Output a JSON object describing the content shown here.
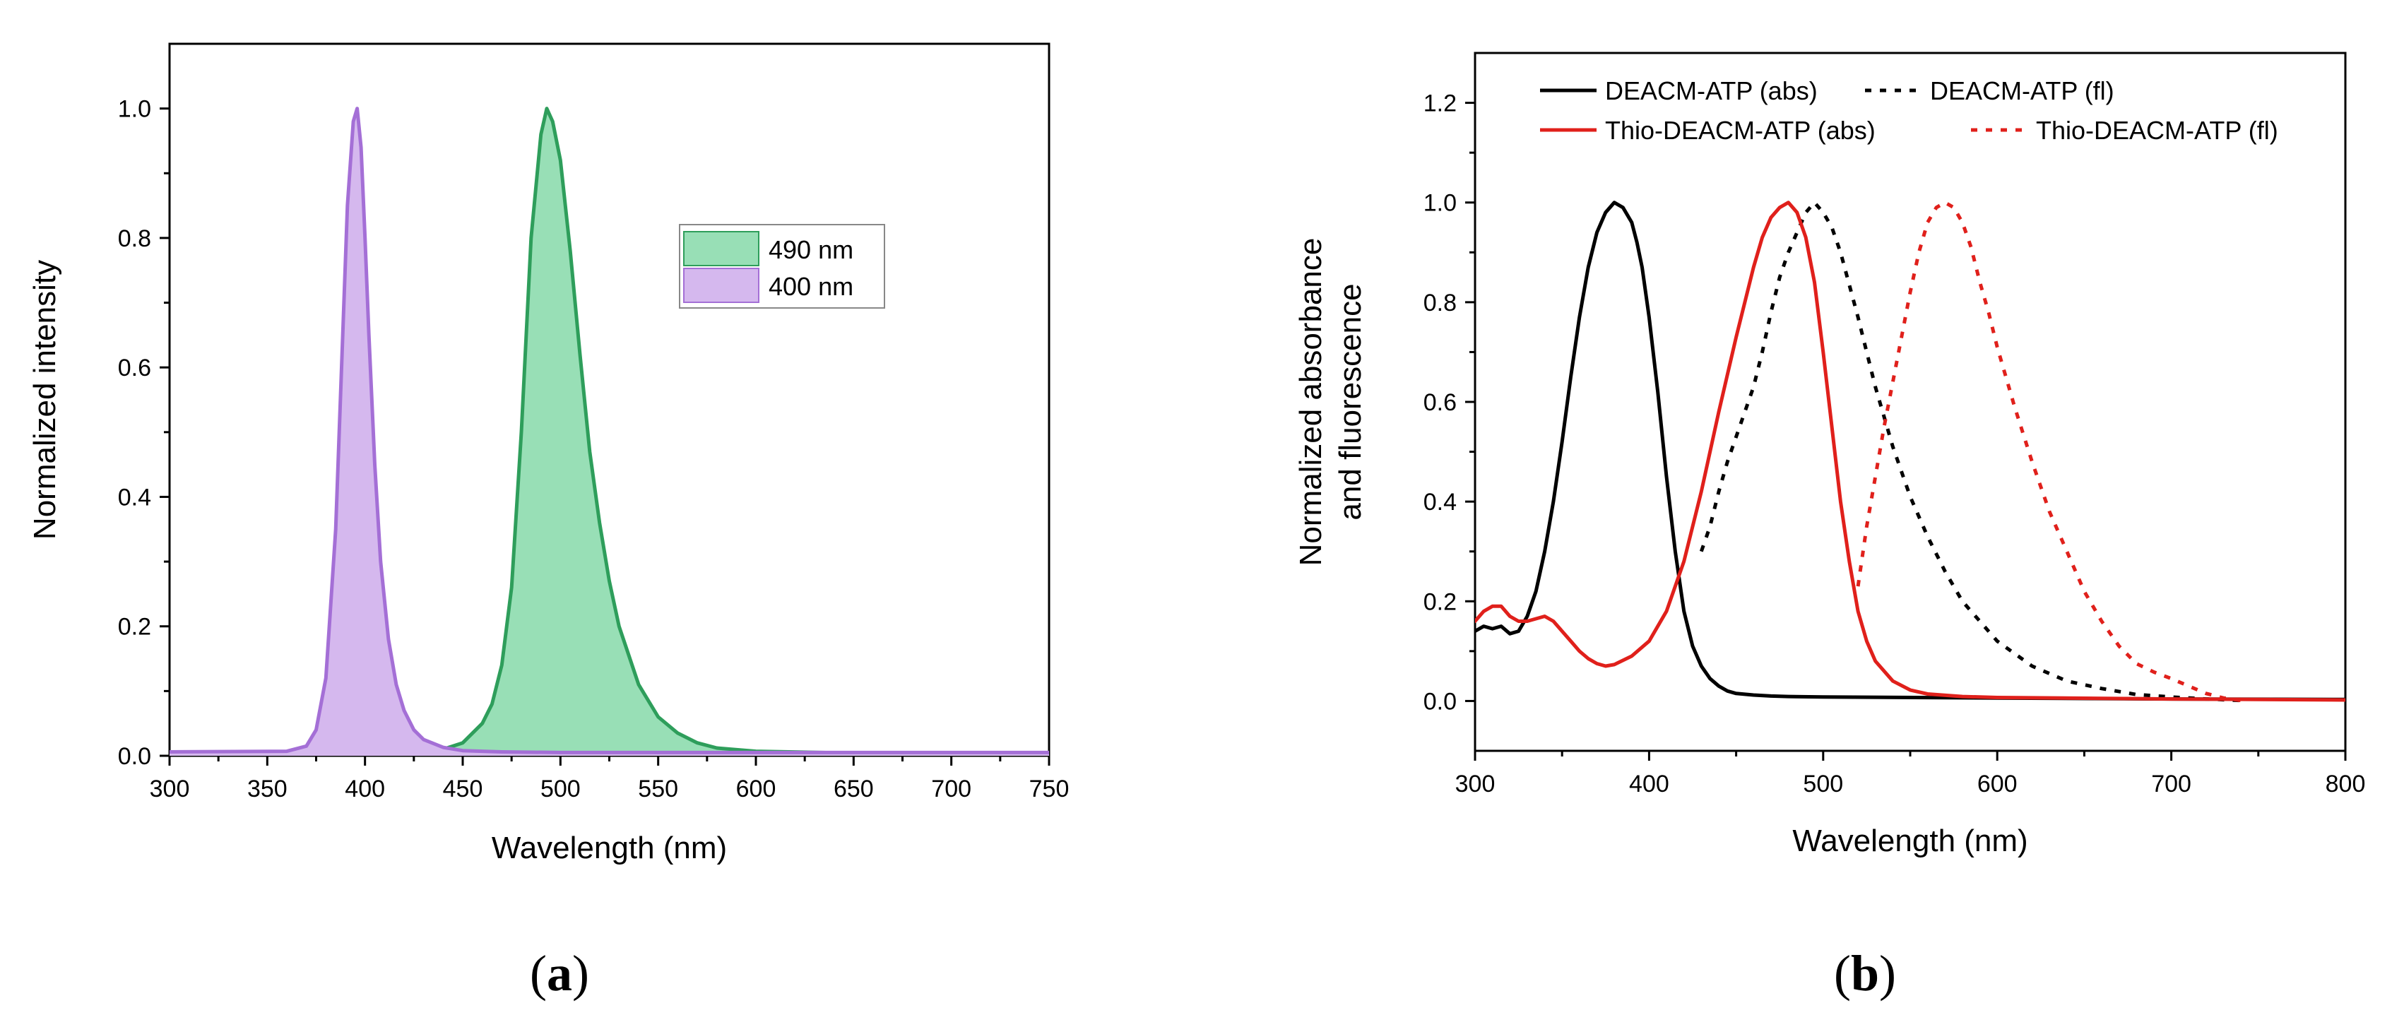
{
  "chart_data": [
    {
      "panel": "a",
      "panel_label": "a",
      "type": "area",
      "title": "",
      "xlabel": "Wavelength (nm)",
      "ylabel": "Normalized intensity",
      "xlim": [
        300,
        750
      ],
      "ylim": [
        0,
        1.1
      ],
      "xticks": [
        300,
        350,
        400,
        450,
        500,
        550,
        600,
        650,
        700,
        750
      ],
      "yticks": [
        0.0,
        0.2,
        0.4,
        0.6,
        0.8,
        1.0
      ],
      "legend_position": "upper-right-center",
      "series": [
        {
          "name": "490 nm",
          "color": "#2e9e5b",
          "fill": "#98dfb6",
          "x": [
            300,
            420,
            440,
            450,
            460,
            465,
            470,
            475,
            480,
            485,
            490,
            493,
            496,
            500,
            505,
            510,
            515,
            520,
            525,
            530,
            540,
            550,
            560,
            570,
            580,
            600,
            650,
            700,
            750
          ],
          "y": [
            0.004,
            0.005,
            0.01,
            0.02,
            0.05,
            0.08,
            0.14,
            0.26,
            0.5,
            0.8,
            0.96,
            1.0,
            0.98,
            0.92,
            0.78,
            0.62,
            0.47,
            0.36,
            0.27,
            0.2,
            0.11,
            0.06,
            0.035,
            0.02,
            0.012,
            0.007,
            0.004,
            0.003,
            0.002
          ]
        },
        {
          "name": "400 nm",
          "color": "#a46fd6",
          "fill": "#d5b8ee",
          "x": [
            300,
            360,
            370,
            375,
            380,
            385,
            388,
            391,
            394,
            396,
            398,
            400,
            402,
            405,
            408,
            412,
            416,
            420,
            425,
            430,
            440,
            450,
            470,
            500,
            600,
            750
          ],
          "y": [
            0.006,
            0.007,
            0.015,
            0.04,
            0.12,
            0.35,
            0.6,
            0.85,
            0.98,
            1.0,
            0.94,
            0.8,
            0.65,
            0.45,
            0.3,
            0.18,
            0.11,
            0.07,
            0.04,
            0.025,
            0.013,
            0.008,
            0.006,
            0.005,
            0.005,
            0.005
          ]
        }
      ]
    },
    {
      "panel": "b",
      "panel_label": "b",
      "type": "line",
      "title": "",
      "xlabel": "Wavelength (nm)",
      "ylabel": "Normalized absorbance",
      "ylabel2": "and fluorescence",
      "xlim": [
        300,
        800
      ],
      "ylim": [
        -0.1,
        1.3
      ],
      "xticks": [
        300,
        400,
        500,
        600,
        700,
        800
      ],
      "yticks": [
        0.0,
        0.2,
        0.4,
        0.6,
        0.8,
        1.0,
        1.2
      ],
      "legend_position": "top",
      "series": [
        {
          "name": "DEACM-ATP (abs)",
          "color": "#000000",
          "dash": "solid",
          "x": [
            300,
            305,
            310,
            315,
            320,
            325,
            330,
            335,
            340,
            345,
            350,
            355,
            360,
            365,
            370,
            375,
            380,
            385,
            390,
            393,
            396,
            400,
            405,
            410,
            415,
            420,
            425,
            430,
            435,
            440,
            445,
            450,
            460,
            470,
            480,
            500,
            600,
            700,
            800
          ],
          "y": [
            0.14,
            0.15,
            0.145,
            0.15,
            0.135,
            0.14,
            0.17,
            0.22,
            0.3,
            0.4,
            0.52,
            0.65,
            0.77,
            0.87,
            0.94,
            0.98,
            1.0,
            0.99,
            0.96,
            0.92,
            0.87,
            0.77,
            0.62,
            0.45,
            0.3,
            0.18,
            0.11,
            0.07,
            0.045,
            0.03,
            0.02,
            0.015,
            0.012,
            0.01,
            0.009,
            0.008,
            0.006,
            0.004,
            0.003
          ]
        },
        {
          "name": "DEACM-ATP (fl)",
          "color": "#000000",
          "dash": "dotted",
          "x": [
            430,
            435,
            440,
            445,
            450,
            455,
            460,
            465,
            470,
            475,
            480,
            485,
            490,
            495,
            500,
            505,
            510,
            520,
            530,
            540,
            550,
            560,
            570,
            580,
            600,
            620,
            640,
            660,
            680,
            700,
            720,
            740
          ],
          "y": [
            0.3,
            0.35,
            0.42,
            0.48,
            0.53,
            0.58,
            0.63,
            0.7,
            0.78,
            0.85,
            0.9,
            0.94,
            0.98,
            1.0,
            0.98,
            0.95,
            0.9,
            0.77,
            0.63,
            0.51,
            0.41,
            0.33,
            0.26,
            0.2,
            0.12,
            0.07,
            0.04,
            0.025,
            0.013,
            0.008,
            0.004,
            0.001
          ]
        },
        {
          "name": "Thio-DEACM-ATP (abs)",
          "color": "#e0201b",
          "dash": "solid",
          "x": [
            300,
            305,
            310,
            315,
            320,
            325,
            330,
            335,
            340,
            345,
            350,
            355,
            360,
            365,
            370,
            375,
            380,
            390,
            400,
            410,
            420,
            430,
            440,
            450,
            460,
            465,
            470,
            475,
            480,
            485,
            490,
            495,
            500,
            505,
            510,
            515,
            520,
            525,
            530,
            540,
            550,
            560,
            580,
            600,
            700,
            800
          ],
          "y": [
            0.16,
            0.18,
            0.19,
            0.19,
            0.17,
            0.16,
            0.16,
            0.165,
            0.17,
            0.16,
            0.14,
            0.12,
            0.1,
            0.085,
            0.075,
            0.07,
            0.073,
            0.09,
            0.12,
            0.18,
            0.28,
            0.42,
            0.58,
            0.73,
            0.87,
            0.93,
            0.97,
            0.99,
            1.0,
            0.98,
            0.93,
            0.84,
            0.7,
            0.55,
            0.4,
            0.28,
            0.18,
            0.12,
            0.08,
            0.04,
            0.022,
            0.014,
            0.009,
            0.007,
            0.004,
            0.002
          ]
        },
        {
          "name": "Thio-DEACM-ATP (fl)",
          "color": "#e0201b",
          "dash": "dotted",
          "x": [
            520,
            525,
            530,
            535,
            540,
            545,
            550,
            555,
            560,
            565,
            570,
            575,
            580,
            585,
            590,
            595,
            600,
            610,
            620,
            630,
            640,
            650,
            660,
            670,
            680,
            690,
            700,
            710,
            720,
            730,
            740
          ],
          "y": [
            0.23,
            0.35,
            0.45,
            0.55,
            0.64,
            0.73,
            0.82,
            0.9,
            0.96,
            0.99,
            1.0,
            0.99,
            0.96,
            0.91,
            0.84,
            0.78,
            0.71,
            0.59,
            0.48,
            0.38,
            0.3,
            0.22,
            0.16,
            0.11,
            0.075,
            0.058,
            0.045,
            0.03,
            0.015,
            0.006,
            0.001
          ]
        }
      ]
    }
  ]
}
